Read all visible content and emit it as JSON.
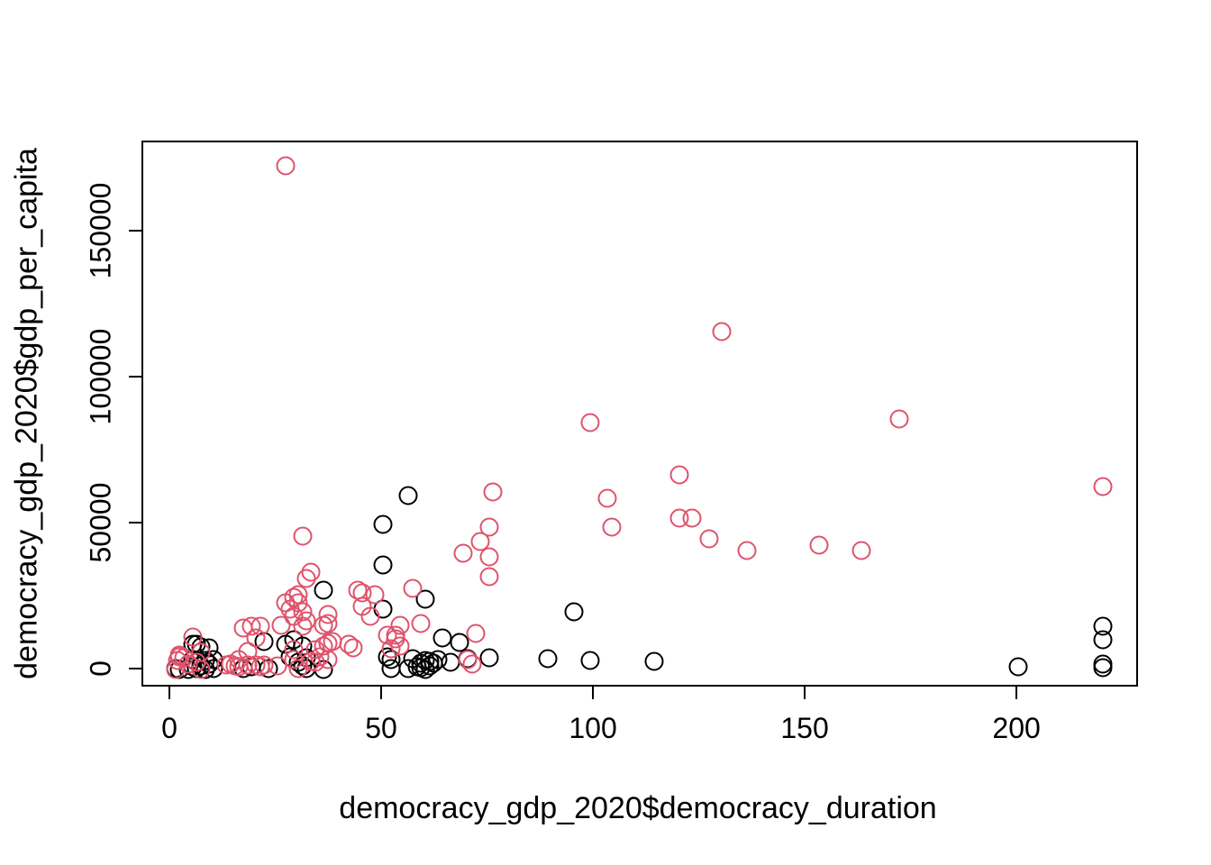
{
  "chart_data": {
    "type": "scatter",
    "title": "",
    "xlabel": "democracy_gdp_2020$democracy_duration",
    "ylabel": "democracy_gdp_2020$gdp_per_capita",
    "xlim": [
      -6.6,
      228.7
    ],
    "ylim": [
      -6200,
      180900
    ],
    "x_ticks": [
      0,
      50,
      100,
      150,
      200
    ],
    "x_tick_labels": [
      "0",
      "50",
      "100",
      "150",
      "200"
    ],
    "y_ticks": [
      0,
      50000,
      100000,
      150000
    ],
    "y_tick_labels": [
      "0",
      "50000",
      "100000",
      "150000"
    ],
    "grid": false,
    "legend": "none",
    "marker": "open-circle",
    "series": [
      {
        "name": "group-black",
        "color": "#000000",
        "points": [
          [
            56,
            60000
          ],
          [
            50,
            50000
          ],
          [
            50,
            36000
          ],
          [
            36,
            27500
          ],
          [
            60,
            24500
          ],
          [
            50,
            21000
          ],
          [
            95,
            20000
          ],
          [
            220,
            15000
          ],
          [
            64,
            11000
          ],
          [
            29,
            10500
          ],
          [
            220,
            10500
          ],
          [
            22,
            10000
          ],
          [
            68,
            9700
          ],
          [
            6,
            9000
          ],
          [
            27,
            9000
          ],
          [
            5,
            8800
          ],
          [
            31,
            8300
          ],
          [
            7,
            8000
          ],
          [
            9,
            7700
          ],
          [
            28,
            4600
          ],
          [
            51,
            4600
          ],
          [
            32,
            4300
          ],
          [
            75,
            4300
          ],
          [
            89,
            4000
          ],
          [
            70,
            4000
          ],
          [
            57,
            4000
          ],
          [
            5,
            3700
          ],
          [
            10,
            3700
          ],
          [
            52,
            3700
          ],
          [
            63,
            3700
          ],
          [
            99,
            3500
          ],
          [
            8,
            3400
          ],
          [
            60,
            3300
          ],
          [
            61,
            3100
          ],
          [
            114,
            3000
          ],
          [
            30,
            2800
          ],
          [
            66,
            2800
          ],
          [
            62,
            2500
          ],
          [
            59,
            2300
          ],
          [
            9,
            2200
          ],
          [
            220,
            2000
          ],
          [
            7,
            1600
          ],
          [
            61,
            1600
          ],
          [
            31,
            1500
          ],
          [
            58,
            1300
          ],
          [
            5,
            1200
          ],
          [
            19,
            1200
          ],
          [
            200,
            1200
          ],
          [
            220,
            800
          ],
          [
            59,
            800
          ],
          [
            1,
            600
          ],
          [
            6,
            600
          ],
          [
            10,
            600
          ],
          [
            17,
            600
          ],
          [
            23,
            600
          ],
          [
            32,
            600
          ],
          [
            52,
            600
          ],
          [
            56,
            600
          ],
          [
            60,
            200
          ],
          [
            2,
            300
          ],
          [
            4,
            300
          ],
          [
            8,
            300
          ],
          [
            36,
            150
          ]
        ]
      },
      {
        "name": "group-pink",
        "color": "#DF536B",
        "points": [
          [
            27,
            173000
          ],
          [
            130,
            116000
          ],
          [
            172,
            86000
          ],
          [
            99,
            85000
          ],
          [
            120,
            67000
          ],
          [
            220,
            63000
          ],
          [
            76,
            61000
          ],
          [
            103,
            59000
          ],
          [
            120,
            52000
          ],
          [
            123,
            52000
          ],
          [
            104,
            49000
          ],
          [
            75,
            49000
          ],
          [
            31,
            46000
          ],
          [
            127,
            45000
          ],
          [
            73,
            44000
          ],
          [
            153,
            43000
          ],
          [
            136,
            41000
          ],
          [
            163,
            41000
          ],
          [
            69,
            40000
          ],
          [
            75,
            39000
          ],
          [
            33,
            33500
          ],
          [
            32,
            31500
          ],
          [
            75,
            32000
          ],
          [
            57,
            28000
          ],
          [
            44,
            27500
          ],
          [
            45,
            26500
          ],
          [
            48,
            26000
          ],
          [
            30,
            26000
          ],
          [
            29,
            25000
          ],
          [
            27,
            23000
          ],
          [
            30,
            23000
          ],
          [
            45,
            22000
          ],
          [
            28,
            21000
          ],
          [
            31,
            20000
          ],
          [
            47,
            18500
          ],
          [
            29,
            18500
          ],
          [
            37,
            19000
          ],
          [
            32,
            17000
          ],
          [
            37,
            16000
          ],
          [
            59,
            16000
          ],
          [
            54,
            15500
          ],
          [
            36,
            15400
          ],
          [
            26,
            15400
          ],
          [
            31,
            15000
          ],
          [
            21,
            15000
          ],
          [
            19,
            15000
          ],
          [
            17,
            14500
          ],
          [
            53,
            12000
          ],
          [
            51,
            12000
          ],
          [
            72,
            12500
          ],
          [
            5,
            11500
          ],
          [
            20,
            11000
          ],
          [
            53,
            10700
          ],
          [
            38,
            10000
          ],
          [
            37,
            9300
          ],
          [
            42,
            9000
          ],
          [
            36,
            8300
          ],
          [
            54,
            8300
          ],
          [
            43,
            7700
          ],
          [
            52,
            7400
          ],
          [
            29,
            7000
          ],
          [
            34,
            7000
          ],
          [
            18,
            6500
          ],
          [
            7,
            6000
          ],
          [
            2,
            5200
          ],
          [
            35,
            4600
          ],
          [
            2,
            4600
          ],
          [
            3,
            4300
          ],
          [
            16,
            3700
          ],
          [
            29,
            3700
          ],
          [
            37,
            3700
          ],
          [
            70,
            3700
          ],
          [
            1.5,
            3400
          ],
          [
            33,
            3100
          ],
          [
            6,
            2900
          ],
          [
            34,
            2800
          ],
          [
            4,
            2200
          ],
          [
            14,
            2200
          ],
          [
            71,
            2200
          ],
          [
            13,
            1900
          ],
          [
            18,
            1900
          ],
          [
            22,
            1900
          ],
          [
            20,
            1700
          ],
          [
            15,
            1500
          ],
          [
            25,
            1500
          ],
          [
            16,
            1200
          ],
          [
            21,
            1200
          ],
          [
            30,
            700
          ],
          [
            1,
            400
          ],
          [
            7,
            200
          ]
        ]
      }
    ]
  }
}
